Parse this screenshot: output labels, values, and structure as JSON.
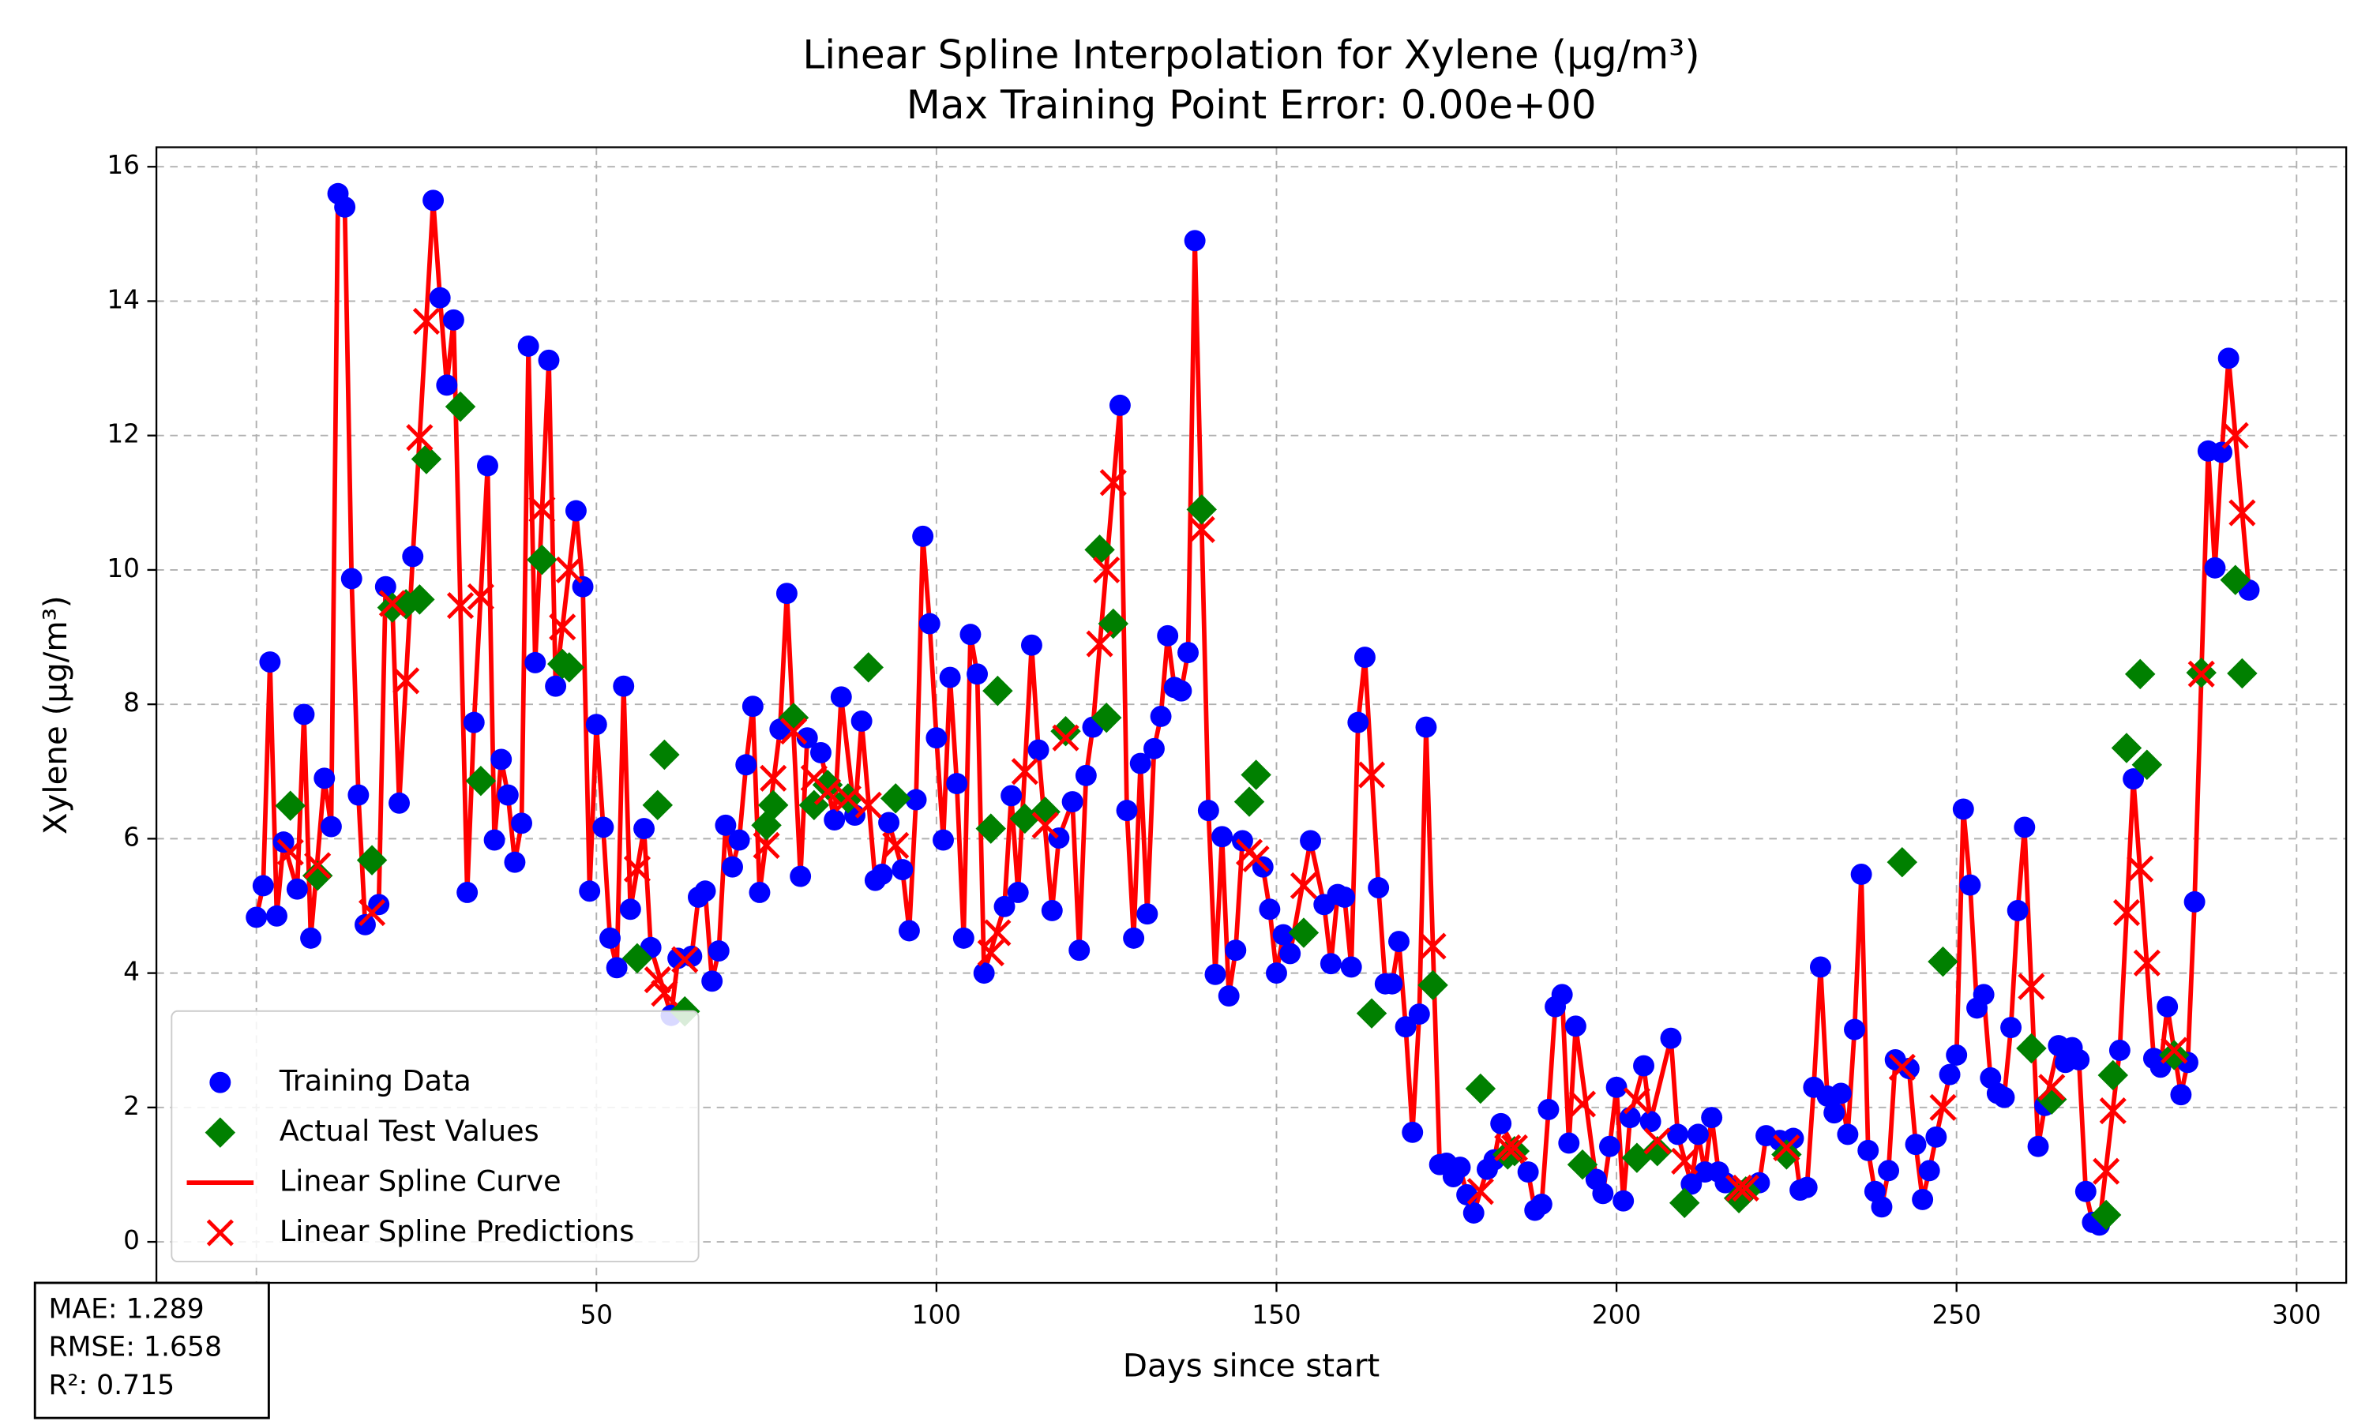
{
  "chart_data": {
    "type": "scatter",
    "title": "Linear Spline Interpolation for Xylene (µg/m³)",
    "subtitle": "Max Training Point Error: 0.00e+00",
    "xlabel": "Days since start",
    "ylabel": "Xylene (µg/m³)",
    "xlim": [
      -14.7,
      307.3
    ],
    "ylim": [
      -0.61,
      16.29
    ],
    "xticks": [
      0,
      50,
      100,
      150,
      200,
      250,
      300
    ],
    "yticks": [
      0,
      2,
      4,
      6,
      8,
      10,
      12,
      14,
      16
    ],
    "grid": true,
    "legend": "lower left",
    "series": [
      {
        "name": "Training Data",
        "color": "#0000ff",
        "marker": "circle",
        "x": [
          0,
          1,
          2,
          3,
          4,
          6,
          7,
          8,
          10,
          11,
          12,
          13,
          14,
          15,
          16,
          18,
          19,
          20,
          21,
          23,
          26,
          27,
          28,
          29,
          31,
          32,
          34,
          35,
          36,
          37,
          38,
          39,
          40,
          41,
          43,
          44,
          47,
          48,
          49,
          50,
          51,
          52,
          53,
          54,
          55,
          57,
          58,
          61,
          62,
          64,
          65,
          66,
          67,
          68,
          69,
          70,
          71,
          72,
          73,
          74,
          77,
          78,
          80,
          81,
          83,
          85,
          86,
          88,
          89,
          91,
          92,
          93,
          95,
          96,
          97,
          98,
          99,
          100,
          101,
          102,
          103,
          104,
          105,
          106,
          107,
          110,
          111,
          112,
          114,
          115,
          117,
          118,
          120,
          121,
          122,
          123,
          127,
          128,
          129,
          130,
          131,
          132,
          133,
          134,
          135,
          136,
          137,
          138,
          140,
          141,
          142,
          143,
          144,
          145,
          148,
          149,
          150,
          151,
          152,
          155,
          157,
          158,
          159,
          160,
          161,
          162,
          163,
          165,
          166,
          167,
          168,
          169,
          170,
          171,
          172,
          174,
          175,
          176,
          177,
          178,
          179,
          181,
          182,
          183,
          187,
          188,
          189,
          190,
          191,
          192,
          193,
          194,
          197,
          198,
          199,
          200,
          201,
          202,
          204,
          205,
          208,
          209,
          211,
          212,
          213,
          214,
          215,
          216,
          221,
          222,
          224,
          226,
          227,
          228,
          229,
          230,
          231,
          232,
          233,
          234,
          235,
          236,
          237,
          238,
          239,
          240,
          241,
          243,
          244,
          245,
          246,
          247,
          249,
          250,
          251,
          252,
          253,
          254,
          255,
          256,
          257,
          258,
          259,
          260,
          262,
          263,
          265,
          266,
          267,
          268,
          269,
          270,
          271,
          274,
          276,
          279,
          280,
          281,
          283,
          284,
          285,
          287,
          288,
          289,
          290,
          293
        ],
        "values": [
          4.83,
          5.3,
          8.63,
          4.85,
          5.95,
          5.25,
          7.85,
          4.52,
          6.9,
          6.18,
          15.6,
          15.4,
          9.87,
          6.65,
          4.72,
          5.02,
          9.75,
          9.45,
          6.53,
          10.2,
          15.5,
          14.05,
          12.75,
          13.72,
          5.2,
          7.73,
          11.55,
          5.98,
          7.18,
          6.65,
          5.65,
          6.23,
          13.33,
          8.62,
          13.12,
          8.27,
          10.88,
          9.75,
          5.22,
          7.7,
          6.17,
          4.52,
          4.08,
          8.27,
          4.95,
          6.15,
          4.38,
          3.37,
          4.22,
          4.25,
          5.13,
          5.22,
          3.88,
          4.33,
          6.2,
          5.58,
          5.98,
          7.1,
          7.97,
          5.2,
          7.63,
          9.65,
          5.44,
          7.5,
          7.28,
          6.28,
          8.11,
          6.35,
          7.75,
          5.38,
          5.47,
          6.24,
          5.54,
          4.63,
          6.58,
          10.5,
          9.2,
          7.5,
          5.98,
          8.4,
          6.82,
          4.52,
          9.04,
          8.45,
          4.0,
          4.99,
          6.64,
          5.2,
          8.88,
          7.32,
          4.93,
          6.01,
          6.55,
          4.34,
          6.94,
          7.66,
          12.45,
          6.42,
          4.52,
          7.12,
          4.88,
          7.34,
          7.82,
          9.02,
          8.25,
          8.2,
          8.77,
          14.9,
          6.42,
          3.98,
          6.03,
          3.66,
          4.34,
          5.97,
          5.58,
          4.95,
          4.0,
          4.57,
          4.29,
          5.97,
          5.02,
          4.14,
          5.17,
          5.13,
          4.09,
          7.73,
          8.7,
          5.27,
          3.84,
          3.84,
          4.47,
          3.2,
          1.63,
          3.39,
          7.66,
          1.15,
          1.17,
          0.97,
          1.11,
          0.7,
          0.43,
          1.08,
          1.22,
          1.76,
          1.04,
          0.47,
          0.56,
          1.97,
          3.5,
          3.68,
          1.47,
          3.21,
          0.93,
          0.72,
          1.42,
          2.3,
          0.61,
          1.85,
          2.62,
          1.79,
          3.03,
          1.6,
          0.86,
          1.6,
          1.04,
          1.85,
          1.04,
          0.88,
          0.88,
          1.58,
          1.51,
          1.54,
          0.77,
          0.81,
          2.3,
          4.09,
          2.17,
          1.92,
          2.21,
          1.6,
          3.16,
          5.47,
          1.36,
          0.75,
          0.52,
          1.06,
          2.71,
          2.58,
          1.45,
          0.63,
          1.06,
          1.56,
          2.49,
          2.78,
          6.44,
          5.31,
          3.48,
          3.68,
          2.44,
          2.21,
          2.15,
          3.19,
          4.93,
          6.17,
          1.42,
          2.03,
          2.92,
          2.67,
          2.89,
          2.71,
          0.75,
          0.29,
          0.25,
          2.85,
          6.89,
          2.73,
          2.6,
          3.5,
          2.19,
          2.67,
          5.06,
          11.77,
          10.03,
          11.75,
          13.15,
          9.7
        ]
      },
      {
        "name": "Actual Test Values",
        "color": "#008000",
        "marker": "diamond",
        "x": [
          5,
          9,
          17,
          20,
          22,
          24,
          25,
          30,
          33,
          42,
          45,
          46,
          56,
          59,
          60,
          63,
          75,
          76,
          79,
          82,
          84,
          87,
          90,
          94,
          108,
          109,
          113,
          116,
          119,
          124,
          125,
          126,
          139,
          146,
          147,
          154,
          164,
          173,
          180,
          184,
          185,
          195,
          203,
          206,
          210,
          218,
          219,
          225,
          242,
          248,
          261,
          264,
          272,
          273,
          275,
          277,
          278,
          282,
          286,
          291,
          292
        ],
        "values": [
          6.49,
          5.45,
          5.68,
          9.44,
          9.49,
          9.56,
          11.65,
          12.43,
          6.86,
          10.15,
          8.6,
          8.55,
          4.22,
          6.5,
          7.25,
          3.43,
          6.2,
          6.5,
          7.8,
          6.5,
          6.8,
          6.6,
          8.55,
          6.6,
          6.15,
          8.2,
          6.3,
          6.4,
          7.6,
          10.3,
          7.8,
          9.2,
          10.9,
          6.55,
          6.95,
          4.6,
          3.4,
          3.82,
          2.28,
          1.3,
          1.35,
          1.15,
          1.25,
          1.35,
          0.58,
          0.65,
          0.75,
          1.3,
          5.65,
          4.17,
          2.88,
          2.12,
          0.4,
          2.48,
          7.35,
          8.45,
          7.1,
          2.78,
          8.47,
          9.85,
          8.46
        ]
      },
      {
        "name": "Linear Spline Curve",
        "color": "#ff0000",
        "marker": "line"
      },
      {
        "name": "Linear Spline Predictions",
        "color": "#ff0000",
        "marker": "x",
        "x": [
          5,
          9,
          17,
          20,
          22,
          24,
          25,
          30,
          33,
          42,
          45,
          46,
          56,
          59,
          60,
          63,
          75,
          76,
          79,
          82,
          84,
          87,
          90,
          94,
          108,
          109,
          113,
          116,
          119,
          124,
          125,
          126,
          139,
          146,
          147,
          154,
          164,
          173,
          180,
          184,
          185,
          195,
          203,
          206,
          210,
          218,
          219,
          225,
          242,
          248,
          261,
          264,
          272,
          273,
          275,
          277,
          278,
          282,
          286,
          291,
          292
        ],
        "values": [
          5.8,
          5.6,
          4.9,
          9.5,
          8.35,
          11.97,
          13.7,
          9.47,
          9.6,
          10.9,
          9.15,
          10.0,
          5.55,
          3.9,
          3.7,
          4.2,
          5.9,
          6.9,
          7.6,
          6.9,
          6.7,
          6.6,
          6.5,
          5.9,
          4.3,
          4.6,
          7.0,
          6.2,
          7.5,
          8.9,
          10.0,
          11.3,
          10.6,
          5.8,
          5.7,
          5.3,
          6.95,
          4.4,
          0.75,
          1.4,
          1.4,
          2.05,
          2.1,
          1.5,
          1.2,
          0.8,
          0.8,
          1.4,
          2.6,
          2.0,
          3.8,
          2.3,
          1.05,
          1.95,
          4.9,
          5.55,
          4.15,
          2.85,
          8.45,
          12.0,
          10.85
        ]
      }
    ],
    "metrics": [
      "MAE: 1.289",
      "RMSE: 1.658",
      "R²: 0.715"
    ]
  }
}
